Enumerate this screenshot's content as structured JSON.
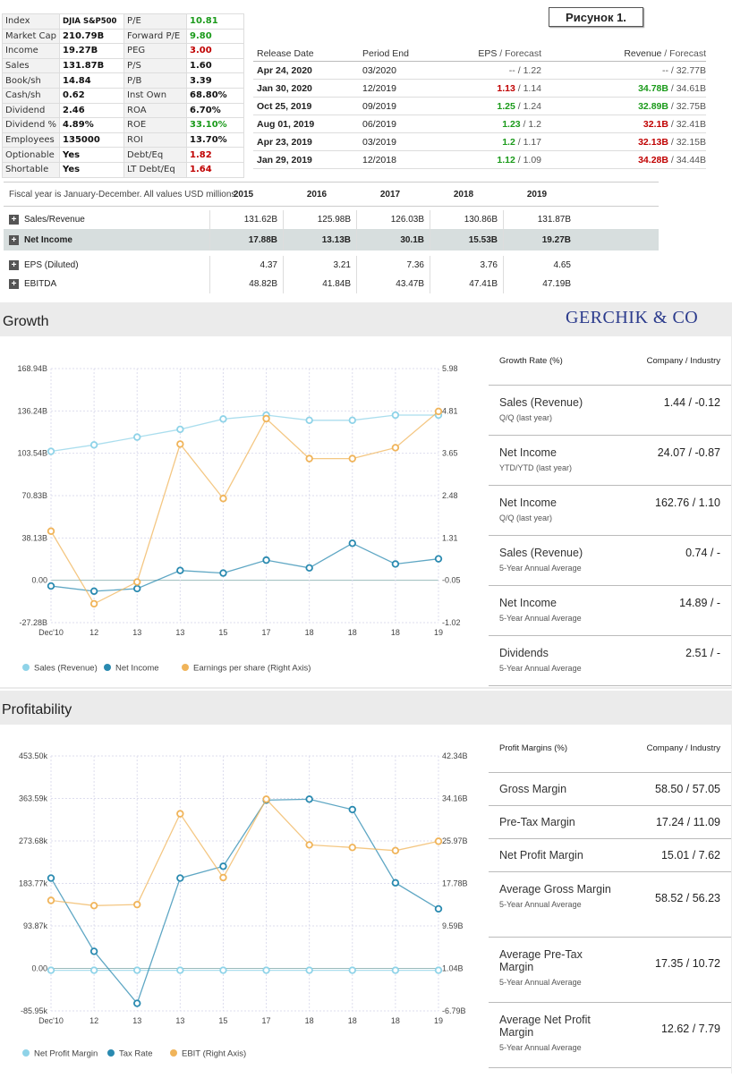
{
  "figure_label": "Рисунок 1.",
  "watermark": "GERCHIK & CO",
  "stats": [
    [
      {
        "t": "Index",
        "k": "lbl"
      },
      {
        "t": "DJIA S&P500",
        "k": "val small"
      },
      {
        "t": "P/E",
        "k": "lbl"
      },
      {
        "t": "10.81",
        "k": "val green"
      }
    ],
    [
      {
        "t": "Market Cap",
        "k": "lbl"
      },
      {
        "t": "210.79B",
        "k": "val"
      },
      {
        "t": "Forward P/E",
        "k": "lbl"
      },
      {
        "t": "9.80",
        "k": "val green"
      }
    ],
    [
      {
        "t": "Income",
        "k": "lbl"
      },
      {
        "t": "19.27B",
        "k": "val"
      },
      {
        "t": "PEG",
        "k": "lbl"
      },
      {
        "t": "3.00",
        "k": "val red"
      }
    ],
    [
      {
        "t": "Sales",
        "k": "lbl"
      },
      {
        "t": "131.87B",
        "k": "val"
      },
      {
        "t": "P/S",
        "k": "lbl"
      },
      {
        "t": "1.60",
        "k": "val"
      }
    ],
    [
      {
        "t": "Book/sh",
        "k": "lbl"
      },
      {
        "t": "14.84",
        "k": "val"
      },
      {
        "t": "P/B",
        "k": "lbl"
      },
      {
        "t": "3.39",
        "k": "val"
      }
    ],
    [
      {
        "t": "Cash/sh",
        "k": "lbl"
      },
      {
        "t": "0.62",
        "k": "val"
      },
      {
        "t": "Inst Own",
        "k": "lbl"
      },
      {
        "t": "68.80%",
        "k": "val"
      }
    ],
    [
      {
        "t": "Dividend",
        "k": "lbl"
      },
      {
        "t": "2.46",
        "k": "val"
      },
      {
        "t": "ROA",
        "k": "lbl"
      },
      {
        "t": "6.70%",
        "k": "val"
      }
    ],
    [
      {
        "t": "Dividend %",
        "k": "lbl"
      },
      {
        "t": "4.89%",
        "k": "val"
      },
      {
        "t": "ROE",
        "k": "lbl"
      },
      {
        "t": "33.10%",
        "k": "val green"
      }
    ],
    [
      {
        "t": "Employees",
        "k": "lbl"
      },
      {
        "t": "135000",
        "k": "val"
      },
      {
        "t": "ROI",
        "k": "lbl"
      },
      {
        "t": "13.70%",
        "k": "val"
      }
    ],
    [
      {
        "t": "Optionable",
        "k": "lbl"
      },
      {
        "t": "Yes",
        "k": "val"
      },
      {
        "t": "Debt/Eq",
        "k": "lbl"
      },
      {
        "t": "1.82",
        "k": "val red"
      }
    ],
    [
      {
        "t": "Shortable",
        "k": "lbl"
      },
      {
        "t": "Yes",
        "k": "val"
      },
      {
        "t": "LT Debt/Eq",
        "k": "lbl"
      },
      {
        "t": "1.64",
        "k": "val red"
      }
    ]
  ],
  "earnings": {
    "headers": {
      "release": "Release Date",
      "period": "Period End",
      "eps": "EPS",
      "eps_fc": "Forecast",
      "rev": "Revenue",
      "rev_fc": "Forecast"
    },
    "rows": [
      {
        "date": "Apr 24, 2020",
        "period": "03/2020",
        "eps": "--",
        "eps_c": "mut",
        "eps_fc": "1.22",
        "rev": "--",
        "rev_c": "mut",
        "rev_fc": "32.77B"
      },
      {
        "date": "Jan 30, 2020",
        "period": "12/2019",
        "eps": "1.13",
        "eps_c": "r",
        "eps_fc": "1.14",
        "rev": "34.78B",
        "rev_c": "g",
        "rev_fc": "34.61B"
      },
      {
        "date": "Oct 25, 2019",
        "period": "09/2019",
        "eps": "1.25",
        "eps_c": "g",
        "eps_fc": "1.24",
        "rev": "32.89B",
        "rev_c": "g",
        "rev_fc": "32.75B"
      },
      {
        "date": "Aug 01, 2019",
        "period": "06/2019",
        "eps": "1.23",
        "eps_c": "g",
        "eps_fc": "1.2",
        "rev": "32.1B",
        "rev_c": "r",
        "rev_fc": "32.41B"
      },
      {
        "date": "Apr 23, 2019",
        "period": "03/2019",
        "eps": "1.2",
        "eps_c": "g",
        "eps_fc": "1.17",
        "rev": "32.13B",
        "rev_c": "r",
        "rev_fc": "32.15B"
      },
      {
        "date": "Jan 29, 2019",
        "period": "12/2018",
        "eps": "1.12",
        "eps_c": "g",
        "eps_fc": "1.09",
        "rev": "34.28B",
        "rev_c": "r",
        "rev_fc": "34.44B"
      }
    ]
  },
  "fiscal": {
    "note": "Fiscal year is January-December. All values USD millions.",
    "years": [
      "2015",
      "2016",
      "2017",
      "2018",
      "2019"
    ],
    "rows": [
      {
        "label": "Sales/Revenue",
        "hi": false,
        "vals": [
          "131.62B",
          "125.98B",
          "126.03B",
          "130.86B",
          "131.87B"
        ]
      },
      {
        "label": "Net Income",
        "hi": true,
        "vals": [
          "17.88B",
          "13.13B",
          "30.1B",
          "15.53B",
          "19.27B"
        ]
      },
      {
        "label": "EPS (Diluted)",
        "hi": false,
        "vals": [
          "4.37",
          "3.21",
          "7.36",
          "3.76",
          "4.65"
        ]
      },
      {
        "label": "EBITDA",
        "hi": false,
        "vals": [
          "48.82B",
          "41.84B",
          "43.47B",
          "47.41B",
          "47.19B"
        ]
      }
    ]
  },
  "growth": {
    "title": "Growth",
    "side_header": {
      "left": "Growth Rate (%)",
      "right": "Company / Industry"
    },
    "side_items": [
      {
        "name": "Sales (Revenue)",
        "sub": "Q/Q (last year)",
        "value": "1.44 / -0.12"
      },
      {
        "name": "Net Income",
        "sub": "YTD/YTD (last year)",
        "value": "24.07 / -0.87"
      },
      {
        "name": "Net Income",
        "sub": "Q/Q (last year)",
        "value": "162.76 / 1.10"
      },
      {
        "name": "Sales (Revenue)",
        "sub": "5-Year Annual Average",
        "value": "0.74 / -"
      },
      {
        "name": "Net Income",
        "sub": "5-Year Annual Average",
        "value": "14.89 / -"
      },
      {
        "name": "Dividends",
        "sub": "5-Year Annual Average",
        "value": "2.51 / -"
      }
    ]
  },
  "profit": {
    "title": "Profitability",
    "side_header": {
      "left": "Profit Margins (%)",
      "right": "Company / Industry"
    },
    "side_items": [
      {
        "name": "Gross Margin",
        "sub": "",
        "value": "58.50 / 57.05"
      },
      {
        "name": "Pre-Tax Margin",
        "sub": "",
        "value": "17.24 / 11.09"
      },
      {
        "name": "Net Profit Margin",
        "sub": "",
        "value": "15.01 / 7.62"
      },
      {
        "name": "Average Gross Margin",
        "sub": "5-Year Annual Average",
        "value": "58.52 / 56.23"
      },
      {
        "name": "Average Pre-Tax Margin",
        "sub": "5-Year Annual Average",
        "value": "17.35 / 10.72"
      },
      {
        "name": "Average Net Profit Margin",
        "sub": "5-Year Annual Average",
        "value": "12.62 / 7.79"
      }
    ]
  },
  "chart_data": [
    {
      "type": "line",
      "title": "Growth",
      "categories": [
        "Dec'10",
        "12",
        "13",
        "13",
        "15",
        "17",
        "18",
        "18",
        "18",
        "19"
      ],
      "left_ticks": [
        "168.94B",
        "136.24B",
        "103.54B",
        "70.83B",
        "38.13B",
        "0.00",
        "-27.28B"
      ],
      "right_ticks": [
        "5.98",
        "4.81",
        "3.65",
        "2.48",
        "1.31",
        "-0.05",
        "-1.02"
      ],
      "left_range": [
        -27.28,
        168.94
      ],
      "right_range": [
        -1.02,
        5.98
      ],
      "series": [
        {
          "name": "Sales (Revenue)",
          "axis": "left",
          "color": "#8fd3e8",
          "values": [
            105,
            110,
            116,
            122,
            130,
            133,
            129,
            129,
            133,
            133
          ]
        },
        {
          "name": "Net Income",
          "axis": "left",
          "color": "#2a8ab0",
          "values": [
            1,
            -3,
            -1,
            13,
            11,
            21,
            15,
            34,
            18,
            22
          ]
        },
        {
          "name": "Earnings per share (Right Axis)",
          "axis": "right",
          "color": "#f0b45a",
          "values": [
            1.5,
            -0.5,
            0.1,
            3.9,
            2.4,
            4.6,
            3.5,
            3.5,
            3.8,
            4.8
          ]
        }
      ]
    },
    {
      "type": "line",
      "title": "Profitability",
      "categories": [
        "Dec'10",
        "12",
        "13",
        "13",
        "15",
        "17",
        "18",
        "18",
        "18",
        "19"
      ],
      "left_ticks": [
        "453.50k",
        "363.59k",
        "273.68k",
        "183.77k",
        "93.87k",
        "0.00",
        "-85.95k"
      ],
      "right_ticks": [
        "42.34B",
        "34.16B",
        "25.97B",
        "17.78B",
        "9.59B",
        "1.04B",
        "-6.79B"
      ],
      "left_range": [
        -85.95,
        453.5
      ],
      "right_range": [
        -6.79,
        42.34
      ],
      "series": [
        {
          "name": "Net Profit Margin",
          "axis": "left",
          "color": "#8fd3e8",
          "values": [
            0,
            0,
            0,
            0,
            0,
            0,
            0,
            0,
            0,
            0
          ]
        },
        {
          "name": "Tax Rate",
          "axis": "left",
          "color": "#2a8ab0",
          "values": [
            195,
            40,
            -70,
            195,
            220,
            360,
            362,
            340,
            185,
            130
          ]
        },
        {
          "name": "EBIT (Right Axis)",
          "axis": "right",
          "color": "#f0b45a",
          "values": [
            14.5,
            13.5,
            13.7,
            31.2,
            18.9,
            34.0,
            25.2,
            24.7,
            24.1,
            25.9
          ]
        }
      ]
    }
  ]
}
